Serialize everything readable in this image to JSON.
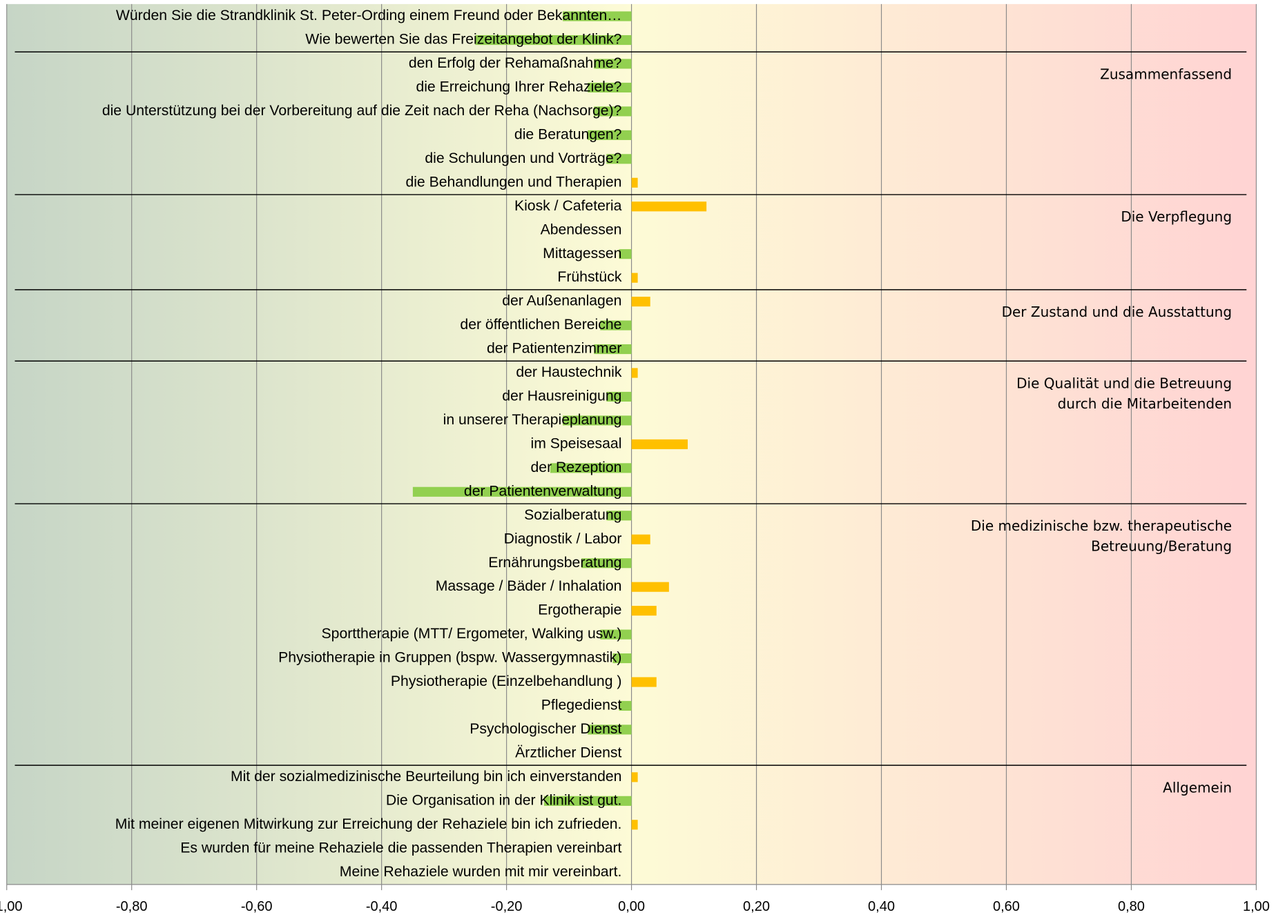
{
  "chart_data": {
    "type": "bar",
    "orientation": "horizontal",
    "color": "#ffc000",
    "negative_color": "#92d050",
    "xlim": [
      -1,
      1
    ],
    "xticks": [
      {
        "value": -1,
        "label": "-1,00"
      },
      {
        "value": -0.8,
        "label": "-0,80"
      },
      {
        "value": -0.6,
        "label": "-0,60"
      },
      {
        "value": -0.4,
        "label": "-0,40"
      },
      {
        "value": -0.2,
        "label": "-0,20"
      },
      {
        "value": 0,
        "label": "0,00"
      },
      {
        "value": 0.2,
        "label": "0,20"
      },
      {
        "value": 0.4,
        "label": "0,40"
      },
      {
        "value": 0.6,
        "label": "0,60"
      },
      {
        "value": 0.8,
        "label": "0,80"
      },
      {
        "value": 1,
        "label": "1,00"
      }
    ],
    "grid": true,
    "groups": [
      {
        "categories": [
          "Würden Sie die Strandklinik St. Peter-Ording einem Freund oder Bekannten…",
          "Wie bewerten Sie das Freizeitangebot der Klink?"
        ],
        "values": [
          -0.11,
          -0.25
        ]
      },
      {
        "label": [
          "Zusammenfassend"
        ],
        "categories": [
          "den Erfolg der Rehamaßnahme?",
          "die Erreichung Ihrer Rehaziele?",
          "die Unterstützung bei der Vorbereitung auf die Zeit nach der Reha (Nachsorge)?",
          "die Beratungen?",
          "die Schulungen und Vorträge?",
          "die Behandlungen und Therapien"
        ],
        "values": [
          -0.06,
          -0.07,
          -0.06,
          -0.07,
          -0.04,
          0.01
        ]
      },
      {
        "label": [
          "Die Verpflegung"
        ],
        "categories": [
          "Kiosk / Cafeteria",
          "Abendessen",
          "Mittagessen",
          "Frühstück"
        ],
        "values": [
          0.12,
          0,
          -0.02,
          0.01
        ]
      },
      {
        "label": [
          "Der Zustand und die Ausstattung"
        ],
        "categories": [
          "der Außenanlagen",
          "der öffentlichen Bereiche",
          "der Patientenzimmer"
        ],
        "values": [
          0.03,
          -0.05,
          -0.06
        ]
      },
      {
        "label": [
          "Die Qualität und die Betreuung",
          "durch die Mitarbeitenden"
        ],
        "categories": [
          "der Haustechnik",
          "der Hausreinigung",
          "in unserer Therapieplanung",
          "im Speisesaal",
          "der Rezeption",
          "der Patientenverwaltung"
        ],
        "values": [
          0.01,
          -0.04,
          -0.11,
          0.09,
          -0.13,
          -0.35
        ]
      },
      {
        "label": [
          "Die medizinische bzw. therapeutische",
          "Betreuung/Beratung"
        ],
        "categories": [
          "Sozialberatung",
          "Diagnostik / Labor",
          "Ernährungsberatung",
          "Massage / Bäder / Inhalation",
          "Ergotherapie",
          "Sporttherapie (MTT/ Ergometer, Walking usw.)",
          "Physiotherapie in Gruppen (bspw. Wassergymnastik)",
          "Physiotherapie (Einzelbehandlung )",
          "Pflegedienst",
          "Psychologischer Dienst",
          "Ärztlicher Dienst"
        ],
        "values": [
          -0.04,
          0.03,
          -0.08,
          0.06,
          0.04,
          -0.05,
          -0.03,
          0.04,
          -0.02,
          -0.07,
          0
        ]
      },
      {
        "label": [
          "Allgemein"
        ],
        "categories": [
          "Mit der sozialmedizinische Beurteilung bin ich einverstanden",
          "Die Organisation in der Klinik ist gut.",
          "Mit meiner eigenen Mitwirkung zur Erreichung der Rehaziele bin ich zufrieden.",
          "Es wurden für meine Rehaziele die passenden Therapien vereinbart",
          "Meine Rehaziele wurden mit mir vereinbart."
        ],
        "values": [
          0.01,
          -0.14,
          0.01,
          0,
          0
        ]
      }
    ]
  }
}
